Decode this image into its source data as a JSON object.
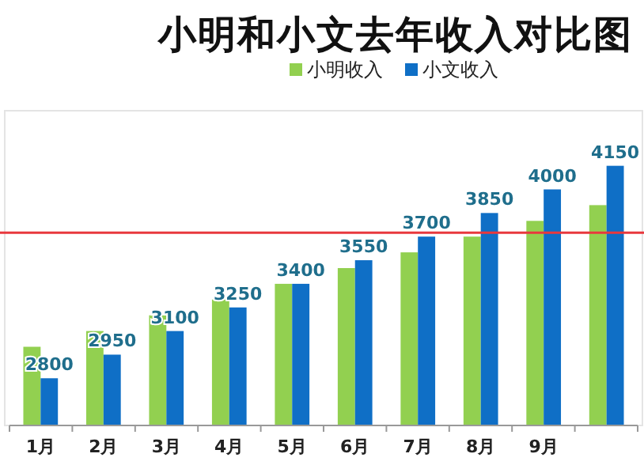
{
  "chart_data": {
    "type": "bar",
    "title": "小明和小文去年收入对比图",
    "categories": [
      "1月",
      "2月",
      "3月",
      "4月",
      "5月",
      "6月",
      "7月",
      "8月",
      "9月",
      null
    ],
    "series": [
      {
        "name": "小明收入",
        "color": "#92d050",
        "values": [
          3000,
          3100,
          3200,
          3300,
          3400,
          3500,
          3600,
          3700,
          3800,
          3900
        ]
      },
      {
        "name": "小文收入",
        "color": "#0f6fc6",
        "values": [
          2800,
          2950,
          3100,
          3250,
          3400,
          3550,
          3700,
          3850,
          4000,
          4150
        ],
        "value_labels": [
          "2800",
          "2950",
          "3100",
          "3250",
          "3400",
          "3550",
          "3700",
          "3850",
          "4000",
          "4150"
        ]
      }
    ],
    "ylim": [
      2500,
      4500
    ],
    "tick_labels": "x",
    "legend": "top",
    "ref_lines": [
      {
        "axis": "y",
        "value": 3725,
        "color": "#e8383d"
      }
    ]
  }
}
